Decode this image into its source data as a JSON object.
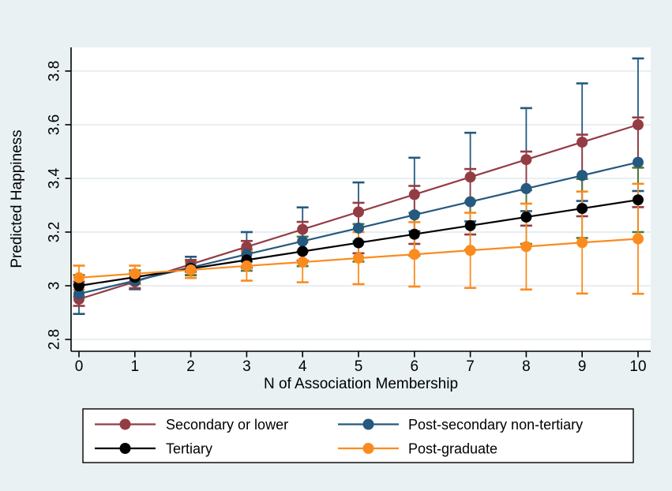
{
  "figure": {
    "background_color": "#E9F1F3",
    "plot_background_color": "#FFFFFF",
    "grid_color": "#DFEAEE",
    "axis_color": "#000000",
    "legend_border_color": "#000000",
    "legend_background_color": "#FFFFFF"
  },
  "chart_data": {
    "type": "line",
    "title": "",
    "xlabel": "N of Association Membership",
    "ylabel": "Predicted Happiness",
    "x": [
      0,
      1,
      2,
      3,
      4,
      5,
      6,
      7,
      8,
      9,
      10
    ],
    "xtick_labels": [
      "0",
      "1",
      "2",
      "3",
      "4",
      "5",
      "6",
      "7",
      "8",
      "9",
      "10"
    ],
    "yticks": [
      2.8,
      3.0,
      3.2,
      3.4,
      3.6,
      3.8
    ],
    "ytick_labels": [
      "2.8",
      "3",
      "3.2",
      "3.4",
      "3.6",
      "3.8"
    ],
    "ylim": [
      2.76,
      3.89
    ],
    "xlim": [
      -0.15,
      10.25
    ],
    "grid": "horizontal",
    "legend_position": "bottom",
    "legend_columns": 2,
    "error_bars": true,
    "series": [
      {
        "name": "Secondary or lower",
        "color": "#943C44",
        "ci_color": "#245980",
        "marker": "circle",
        "values": [
          2.95,
          3.015,
          3.08,
          3.145,
          3.21,
          3.275,
          3.34,
          3.405,
          3.47,
          3.535,
          3.6
        ],
        "ci_half_width": [
          0.055,
          0.028,
          0.028,
          0.055,
          0.082,
          0.11,
          0.137,
          0.165,
          0.192,
          0.219,
          0.247
        ]
      },
      {
        "name": "Post-secondary non-tertiary",
        "color": "#245980",
        "ci_color": "#943C44",
        "marker": "circle",
        "values": [
          2.97,
          3.019,
          3.068,
          3.117,
          3.166,
          3.215,
          3.264,
          3.313,
          3.362,
          3.411,
          3.46
        ],
        "ci_half_width": [
          0.045,
          0.028,
          0.028,
          0.05,
          0.072,
          0.094,
          0.108,
          0.122,
          0.138,
          0.152,
          0.167
        ]
      },
      {
        "name": "Tertiary",
        "color": "#000000",
        "ci_color": "#4E7D33",
        "marker": "circle",
        "values": [
          3.0,
          3.032,
          3.064,
          3.096,
          3.128,
          3.16,
          3.192,
          3.224,
          3.256,
          3.288,
          3.32
        ],
        "ci_half_width": [
          0.04,
          0.025,
          0.025,
          0.04,
          0.055,
          0.07,
          0.08,
          0.09,
          0.1,
          0.11,
          0.12
        ]
      },
      {
        "name": "Post-graduate",
        "color": "#FB8B1E",
        "ci_color": "#FB8B1E",
        "marker": "circle",
        "values": [
          3.03,
          3.045,
          3.059,
          3.074,
          3.088,
          3.103,
          3.117,
          3.132,
          3.146,
          3.161,
          3.175
        ],
        "ci_half_width": [
          0.045,
          0.03,
          0.03,
          0.055,
          0.075,
          0.097,
          0.12,
          0.14,
          0.16,
          0.19,
          0.205
        ]
      }
    ]
  }
}
